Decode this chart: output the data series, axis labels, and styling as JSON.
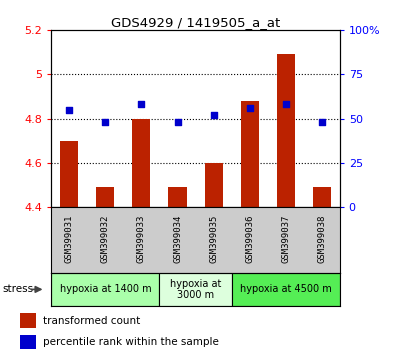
{
  "title": "GDS4929 / 1419505_a_at",
  "samples": [
    "GSM399031",
    "GSM399032",
    "GSM399033",
    "GSM399034",
    "GSM399035",
    "GSM399036",
    "GSM399037",
    "GSM399038"
  ],
  "transformed_count": [
    4.7,
    4.49,
    4.8,
    4.49,
    4.6,
    4.88,
    5.09,
    4.49
  ],
  "percentile_rank": [
    55,
    48,
    58,
    48,
    52,
    56,
    58,
    48
  ],
  "ylim_left": [
    4.4,
    5.2
  ],
  "ylim_right": [
    0,
    100
  ],
  "yticks_left": [
    4.4,
    4.6,
    4.8,
    5.0,
    5.2
  ],
  "yticks_right": [
    0,
    25,
    50,
    75,
    100
  ],
  "ytick_labels_left": [
    "4.4",
    "4.6",
    "4.8",
    "5",
    "5.2"
  ],
  "ytick_labels_right": [
    "0",
    "25",
    "50",
    "75",
    "100%"
  ],
  "hlines": [
    4.6,
    4.8,
    5.0
  ],
  "bar_color": "#bb2200",
  "scatter_color": "#0000cc",
  "groups": [
    {
      "label": "hypoxia at 1400 m",
      "start": 0,
      "end": 3,
      "color": "#aaffaa"
    },
    {
      "label": "hypoxia at\n3000 m",
      "start": 3,
      "end": 5,
      "color": "#ddffdd"
    },
    {
      "label": "hypoxia at 4500 m",
      "start": 5,
      "end": 8,
      "color": "#55ee55"
    }
  ],
  "stress_label": "stress",
  "legend_bar_label": "transformed count",
  "legend_scatter_label": "percentile rank within the sample",
  "bar_width": 0.5,
  "tick_area_color": "#cccccc"
}
